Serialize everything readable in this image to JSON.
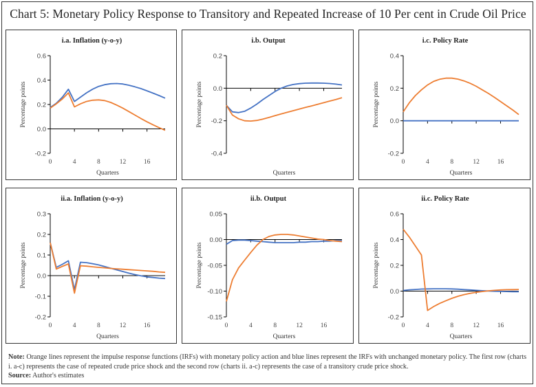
{
  "title": "Chart 5: Monetary Policy Response to Transitory and Repeated Increase of 10 Per cent in Crude Oil Price",
  "colors": {
    "orange": "#ED7D31",
    "blue": "#4472C4",
    "axis": "#000000",
    "text": "#333333"
  },
  "note": {
    "note_label": "Note:",
    "note_text": " Orange lines represent the impulse response functions (IRFs) with monetary policy action and blue lines represent the IRFs with unchanged monetary policy. The first row (charts i. a-c) represents the case of repeated crude price shock and the second row (charts ii. a-c) represents the case of a transitory crude price shock.",
    "source_label": "Source:",
    "source_text": " Author's estimates"
  },
  "chart_data": [
    {
      "id": "ia",
      "type": "line",
      "title": "i.a. Inflation (y-o-y)",
      "xlabel": "Quarters",
      "ylabel": "Percentage points",
      "ylim": [
        -0.2,
        0.6
      ],
      "yticks": [
        -0.2,
        0.0,
        0.2,
        0.4,
        0.6
      ],
      "ytick_labels": [
        "-0.2",
        "0.0",
        "0.2",
        "0.4",
        "0.6"
      ],
      "xticks": [
        0,
        4,
        8,
        12,
        16
      ],
      "xtick_labels": [
        "0",
        "4",
        "8",
        "12",
        "16"
      ],
      "show_xtick_labels": true,
      "x": [
        0,
        1,
        2,
        3,
        4,
        5,
        6,
        7,
        8,
        9,
        10,
        11,
        12,
        13,
        14,
        15,
        16,
        17,
        18,
        19
      ],
      "series": [
        {
          "name": "Unchanged monetary policy",
          "color": "blue",
          "values": [
            0.175,
            0.21,
            0.26,
            0.325,
            0.225,
            0.26,
            0.295,
            0.325,
            0.348,
            0.362,
            0.37,
            0.372,
            0.368,
            0.358,
            0.345,
            0.33,
            0.312,
            0.293,
            0.273,
            0.252
          ]
        },
        {
          "name": "With monetary policy action",
          "color": "orange",
          "values": [
            0.17,
            0.205,
            0.245,
            0.295,
            0.18,
            0.205,
            0.225,
            0.235,
            0.238,
            0.232,
            0.217,
            0.195,
            0.17,
            0.142,
            0.113,
            0.085,
            0.058,
            0.033,
            0.01,
            -0.012
          ]
        }
      ]
    },
    {
      "id": "ib",
      "type": "line",
      "title": "i.b. Output",
      "xlabel": "Quarters",
      "ylabel": "Percentage points",
      "ylim": [
        -0.4,
        0.2
      ],
      "yticks": [
        -0.4,
        -0.2,
        0.0,
        0.2
      ],
      "ytick_labels": [
        "-0.4",
        "-0.2",
        "0.0",
        "0.2"
      ],
      "xticks": [
        0,
        4,
        8,
        12,
        16
      ],
      "xtick_labels": [
        "0",
        "4",
        "8",
        "12",
        "16"
      ],
      "show_xtick_labels": false,
      "x": [
        0,
        1,
        2,
        3,
        4,
        5,
        6,
        7,
        8,
        9,
        10,
        11,
        12,
        13,
        14,
        15,
        16,
        17,
        18,
        19
      ],
      "series": [
        {
          "name": "Unchanged monetary policy",
          "color": "blue",
          "values": [
            -0.105,
            -0.145,
            -0.15,
            -0.142,
            -0.122,
            -0.098,
            -0.07,
            -0.045,
            -0.02,
            0.0,
            0.014,
            0.023,
            0.028,
            0.031,
            0.032,
            0.032,
            0.031,
            0.029,
            0.025,
            0.02
          ]
        },
        {
          "name": "With monetary policy action",
          "color": "orange",
          "values": [
            -0.105,
            -0.165,
            -0.188,
            -0.2,
            -0.202,
            -0.198,
            -0.19,
            -0.18,
            -0.169,
            -0.158,
            -0.148,
            -0.138,
            -0.128,
            -0.118,
            -0.109,
            -0.099,
            -0.089,
            -0.079,
            -0.069,
            -0.058
          ]
        }
      ]
    },
    {
      "id": "ic",
      "type": "line",
      "title": "i.c. Policy Rate",
      "xlabel": "Quarters",
      "ylabel": "Percentage points",
      "ylim": [
        -0.2,
        0.4
      ],
      "yticks": [
        -0.2,
        0.0,
        0.2,
        0.4
      ],
      "ytick_labels": [
        "-0.2",
        "0.0",
        "0.2",
        "0.4"
      ],
      "xticks": [
        0,
        4,
        8,
        12,
        16
      ],
      "xtick_labels": [
        "0",
        "4",
        "8",
        "12",
        "16"
      ],
      "show_xtick_labels": true,
      "x": [
        0,
        1,
        2,
        3,
        4,
        5,
        6,
        7,
        8,
        9,
        10,
        11,
        12,
        13,
        14,
        15,
        16,
        17,
        18,
        19
      ],
      "series": [
        {
          "name": "Unchanged monetary policy",
          "color": "blue",
          "values": [
            0,
            0,
            0,
            0,
            0,
            0,
            0,
            0,
            0,
            0,
            0,
            0,
            0,
            0,
            0,
            0,
            0,
            0,
            0,
            0
          ]
        },
        {
          "name": "With monetary policy action",
          "color": "orange",
          "values": [
            0.055,
            0.11,
            0.155,
            0.19,
            0.22,
            0.242,
            0.255,
            0.262,
            0.262,
            0.256,
            0.245,
            0.23,
            0.212,
            0.19,
            0.168,
            0.144,
            0.118,
            0.092,
            0.066,
            0.038
          ]
        }
      ]
    },
    {
      "id": "iia",
      "type": "line",
      "title": "ii.a. Inflation (y-o-y)",
      "xlabel": "Quarters",
      "ylabel": "Percentage points",
      "ylim": [
        -0.2,
        0.3
      ],
      "yticks": [
        -0.2,
        -0.1,
        0.0,
        0.1,
        0.2,
        0.3
      ],
      "ytick_labels": [
        "-0.2",
        "-0.1",
        "0.0",
        "0.1",
        "0.2",
        "0.3"
      ],
      "xticks": [
        0,
        4,
        8,
        12,
        16
      ],
      "xtick_labels": [
        "0",
        "4",
        "8",
        "12",
        "16"
      ],
      "show_xtick_labels": true,
      "x": [
        0,
        1,
        2,
        3,
        4,
        5,
        6,
        7,
        8,
        9,
        10,
        11,
        12,
        13,
        14,
        15,
        16,
        17,
        18,
        19
      ],
      "series": [
        {
          "name": "Unchanged monetary policy",
          "color": "blue",
          "values": [
            0.16,
            0.04,
            0.055,
            0.072,
            -0.068,
            0.065,
            0.063,
            0.058,
            0.052,
            0.044,
            0.036,
            0.028,
            0.02,
            0.012,
            0.005,
            -0.001,
            -0.006,
            -0.009,
            -0.012,
            -0.014
          ]
        },
        {
          "name": "With monetary policy action",
          "color": "orange",
          "values": [
            0.16,
            0.032,
            0.045,
            0.057,
            -0.085,
            0.048,
            0.046,
            0.043,
            0.04,
            0.038,
            0.035,
            0.033,
            0.031,
            0.029,
            0.027,
            0.025,
            0.023,
            0.021,
            0.018,
            0.016
          ]
        }
      ]
    },
    {
      "id": "iib",
      "type": "line",
      "title": "ii.b. Output",
      "xlabel": "Quarters",
      "ylabel": "Percentage points",
      "ylim": [
        -0.15,
        0.05
      ],
      "yticks": [
        -0.15,
        -0.1,
        -0.05,
        0.0,
        0.05
      ],
      "ytick_labels": [
        "-0.15",
        "-0.10",
        "-0.05",
        "0.00",
        "0.05"
      ],
      "xticks": [
        0,
        4,
        8,
        12,
        16
      ],
      "xtick_labels": [
        "0",
        "4",
        "8",
        "12",
        "16"
      ],
      "show_xtick_labels": true,
      "x": [
        0,
        1,
        2,
        3,
        4,
        5,
        6,
        7,
        8,
        9,
        10,
        11,
        12,
        13,
        14,
        15,
        16,
        17,
        18,
        19
      ],
      "series": [
        {
          "name": "Unchanged monetary policy",
          "color": "blue",
          "values": [
            -0.009,
            -0.002,
            -0.001,
            -0.001,
            -0.002,
            -0.003,
            -0.004,
            -0.005,
            -0.006,
            -0.006,
            -0.006,
            -0.006,
            -0.005,
            -0.005,
            -0.004,
            -0.004,
            -0.003,
            -0.003,
            -0.002,
            -0.002
          ]
        },
        {
          "name": "With monetary policy action",
          "color": "orange",
          "values": [
            -0.12,
            -0.078,
            -0.055,
            -0.04,
            -0.025,
            -0.011,
            0.0,
            0.006,
            0.009,
            0.01,
            0.01,
            0.009,
            0.007,
            0.005,
            0.003,
            0.001,
            0.0,
            -0.002,
            -0.003,
            -0.004
          ]
        }
      ]
    },
    {
      "id": "iic",
      "type": "line",
      "title": "ii.c. Policy Rate",
      "xlabel": "Quarters",
      "ylabel": "Percentage points",
      "ylim": [
        -0.2,
        0.6
      ],
      "yticks": [
        -0.2,
        0.0,
        0.2,
        0.4,
        0.6
      ],
      "ytick_labels": [
        "-0.2",
        "0.0",
        "0.2",
        "0.4",
        "0.6"
      ],
      "xticks": [
        0,
        4,
        8,
        12,
        16
      ],
      "xtick_labels": [
        "0",
        "4",
        "8",
        "12",
        "16"
      ],
      "show_xtick_labels": true,
      "x": [
        0,
        1,
        2,
        3,
        4,
        5,
        6,
        7,
        8,
        9,
        10,
        11,
        12,
        13,
        14,
        15,
        16,
        17,
        18,
        19
      ],
      "series": [
        {
          "name": "Unchanged monetary policy",
          "color": "blue",
          "values": [
            0.005,
            0.01,
            0.013,
            0.016,
            0.017,
            0.018,
            0.018,
            0.018,
            0.017,
            0.015,
            0.012,
            0.009,
            0.006,
            0.003,
            0.001,
            -0.001,
            -0.002,
            -0.003,
            -0.004,
            -0.004
          ]
        },
        {
          "name": "With monetary policy action",
          "color": "orange",
          "values": [
            0.48,
            0.42,
            0.35,
            0.28,
            -0.15,
            -0.12,
            -0.095,
            -0.075,
            -0.056,
            -0.04,
            -0.027,
            -0.017,
            -0.009,
            -0.003,
            0.002,
            0.006,
            0.009,
            0.011,
            0.012,
            0.013
          ]
        }
      ]
    }
  ]
}
